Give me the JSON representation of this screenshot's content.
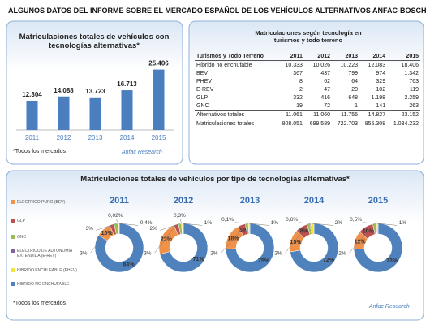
{
  "title": "ALGUNOS DATOS DEL INFORME SOBRE EL MERCADO ESPAÑOL DE LOS VEHÍCULOS ALTERNATIVOS ANFAC-BOSCH",
  "chart_data": [
    {
      "type": "bar",
      "title": "Matriculaciones totales de vehículos con tecnologías alternativas*",
      "categories": [
        "2011",
        "2012",
        "2013",
        "2014",
        "2015"
      ],
      "values": [
        12304,
        14088,
        13723,
        16713,
        25406
      ],
      "value_labels": [
        "12.304",
        "14.088",
        "13.723",
        "16.713",
        "25.406"
      ],
      "color": "#4a7ebf",
      "ylim": [
        0,
        28000
      ],
      "note": "*Todos los mercados",
      "logo": "Anfac Research"
    },
    {
      "type": "donut",
      "title": "Matriculaciones totales de vehículos por tipo de tecnologías alternativas*",
      "categories": [
        "2011",
        "2012",
        "2013",
        "2014",
        "2015"
      ],
      "series": [
        {
          "name": "ELECTRICO PURO (BEV)",
          "color": "#f0914a",
          "values": [
            10,
            23,
            18,
            15,
            12
          ],
          "value_labels": [
            "10%",
            "23%",
            "18%",
            "15%",
            "12%"
          ]
        },
        {
          "name": "GLP",
          "color": "#c0504d",
          "values": [
            3,
            3,
            5,
            8,
            10
          ],
          "value_labels": [
            "3%",
            "3%",
            "5%",
            "8%",
            "10%"
          ]
        },
        {
          "name": "GNC",
          "color": "#9bbb59",
          "values": [
            3,
            2,
            2,
            2,
            2
          ],
          "value_labels": [
            "3%",
            "2%",
            "2%",
            "2%",
            "2%"
          ]
        },
        {
          "name": "ELECTRICO DE AUTONOMIA EXTENDIDA (E-REV)",
          "color": "#8064a2",
          "values": [
            0.02,
            0.3,
            0.1,
            0.6,
            0.5
          ],
          "value_labels": [
            "0,02%",
            "0,3%",
            "0,1%",
            "0,6%",
            "0,5%"
          ]
        },
        {
          "name": "HIBRIDO ENCHUFABLE (PHEV)",
          "color": "#f2e33f",
          "values": [
            0.4,
            1,
            1,
            2,
            1
          ],
          "value_labels": [
            "0,4%",
            "1%",
            "1%",
            "2%",
            "1%"
          ]
        },
        {
          "name": "HIBRIDO NO ENCHUFABLE",
          "color": "#4f81bd",
          "values": [
            84,
            71,
            75,
            72,
            73
          ],
          "value_labels": [
            "84%",
            "71%",
            "75%",
            "72%",
            "73%"
          ]
        }
      ],
      "note": "*Todos los mercados",
      "logo": "Anfac Research"
    }
  ],
  "table": {
    "title": "Matriculaciones según tecnología en turismos y todo terreno",
    "header": [
      "Turismos y Todo Terreno",
      "2011",
      "2012",
      "2013",
      "2014",
      "2015"
    ],
    "rows": [
      [
        "Híbrido no enchufable",
        "10.333",
        "10.026",
        "10.223",
        "12.083",
        "18.406"
      ],
      [
        "BEV",
        "367",
        "437",
        "799",
        "974",
        "1.342"
      ],
      [
        "PHEV",
        "8",
        "62",
        "64",
        "329",
        "763"
      ],
      [
        "E-REV",
        "2",
        "47",
        "20",
        "102",
        "119"
      ],
      [
        "GLP",
        "332",
        "416",
        "648",
        "1.198",
        "2.259"
      ],
      [
        "GNC",
        "19",
        "72",
        "1",
        "141",
        "263"
      ],
      [
        "Alternativos totales",
        "11.061",
        "11.060",
        "11.755",
        "14.827",
        "23.152"
      ],
      [
        "Matriculaciones totales",
        "808.051",
        "699.589",
        "722.703",
        "855.308",
        "1.034.232"
      ]
    ]
  }
}
